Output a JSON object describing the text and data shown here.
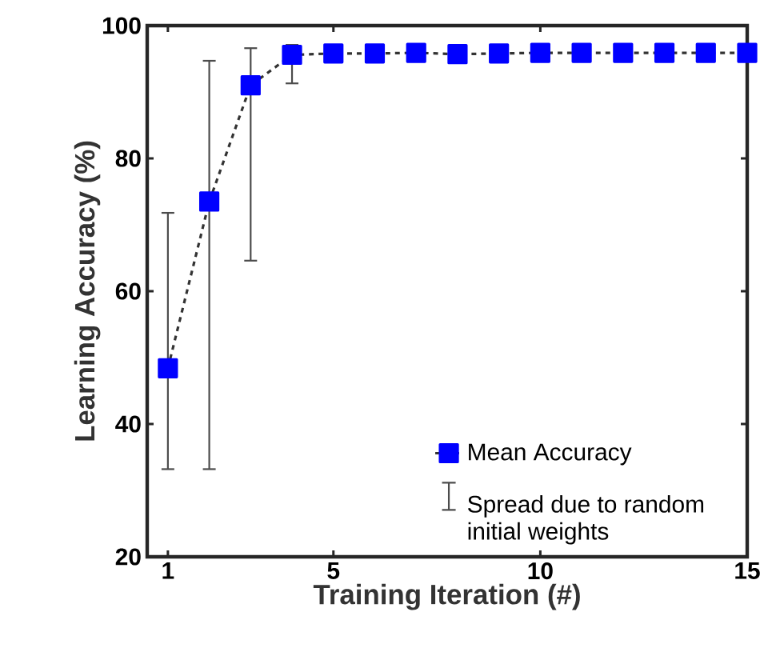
{
  "chart_data": {
    "type": "line",
    "xlabel": "Training Iteration (#)",
    "ylabel": "Learning Accuracy (%)",
    "x": [
      1,
      2,
      3,
      4,
      5,
      6,
      7,
      8,
      9,
      10,
      11,
      12,
      13,
      14,
      15
    ],
    "series": [
      {
        "name": "Mean Accuracy",
        "color": "#0000ff",
        "values": [
          48.4,
          73.5,
          91,
          95.6,
          95.8,
          95.8,
          95.9,
          95.7,
          95.8,
          95.9,
          95.9,
          95.9,
          95.9,
          95.9,
          95.9
        ],
        "errors": [
          [
            33.2,
            71.8
          ],
          [
            33.2,
            94.7
          ],
          [
            64.6,
            96.6
          ],
          [
            91.3,
            97.1
          ],
          null,
          null,
          null,
          null,
          null,
          null,
          null,
          null,
          null,
          null,
          null
        ]
      }
    ],
    "annotations": [
      "Spread due to random initial weights"
    ],
    "xlim": [
      0.5,
      15
    ],
    "ylim": [
      20,
      100
    ],
    "xticks": [
      1,
      5,
      10,
      15
    ],
    "yticks": [
      20,
      40,
      60,
      80,
      100
    ],
    "marker": "square",
    "line_style": "dashed",
    "legend": "bottom right",
    "grid": false
  }
}
